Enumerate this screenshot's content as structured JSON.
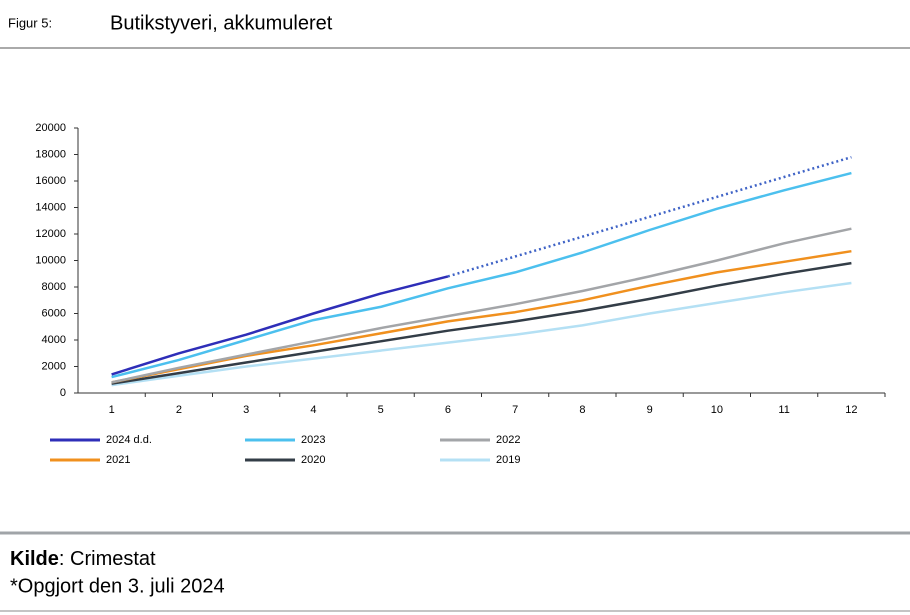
{
  "header": {
    "figure_label": "Figur 5:"
  },
  "chart_data": {
    "type": "line",
    "title": "Butikstyveri, akkumuleret",
    "categories": [
      "1",
      "2",
      "3",
      "4",
      "5",
      "6",
      "7",
      "8",
      "9",
      "10",
      "11",
      "12"
    ],
    "ylim": [
      0,
      20000
    ],
    "yticks": [
      0,
      2000,
      4000,
      6000,
      8000,
      10000,
      12000,
      14000,
      16000,
      18000,
      20000
    ],
    "series": [
      {
        "name": "2024 d.d.",
        "color": "#2e2eb8",
        "values": [
          1400,
          3000,
          4400,
          6000,
          7500,
          8800,
          null,
          null,
          null,
          null,
          null,
          null
        ]
      },
      {
        "name": "2023",
        "color": "#4cc0ee",
        "values": [
          1200,
          2500,
          4000,
          5500,
          6500,
          7900,
          9100,
          10600,
          12300,
          13900,
          15300,
          16600
        ]
      },
      {
        "name": "2022",
        "color": "#a3a5a8",
        "values": [
          800,
          1900,
          2900,
          3900,
          4900,
          5800,
          6700,
          7700,
          8800,
          10000,
          11300,
          12400
        ]
      },
      {
        "name": "2021",
        "color": "#f0901e",
        "values": [
          800,
          1800,
          2800,
          3600,
          4500,
          5400,
          6100,
          7000,
          8100,
          9100,
          9900,
          10700
        ]
      },
      {
        "name": "2020",
        "color": "#333d47",
        "values": [
          700,
          1500,
          2300,
          3100,
          3900,
          4700,
          5400,
          6200,
          7100,
          8100,
          9000,
          9800
        ]
      },
      {
        "name": "2019",
        "color": "#b4e0f4",
        "values": [
          600,
          1300,
          2000,
          2600,
          3200,
          3800,
          4400,
          5100,
          6000,
          6800,
          7600,
          8300
        ]
      }
    ],
    "projection": {
      "color": "#3f63c6",
      "dash": "dotted",
      "values": [
        null,
        null,
        null,
        null,
        null,
        8800,
        10300,
        11800,
        13300,
        14800,
        16300,
        17800
      ]
    },
    "legend_columns": 3
  },
  "footer": {
    "source_label": "Kilde",
    "source_text": ": Crimestat",
    "note": "*Opgjort den 3. juli 2024"
  }
}
